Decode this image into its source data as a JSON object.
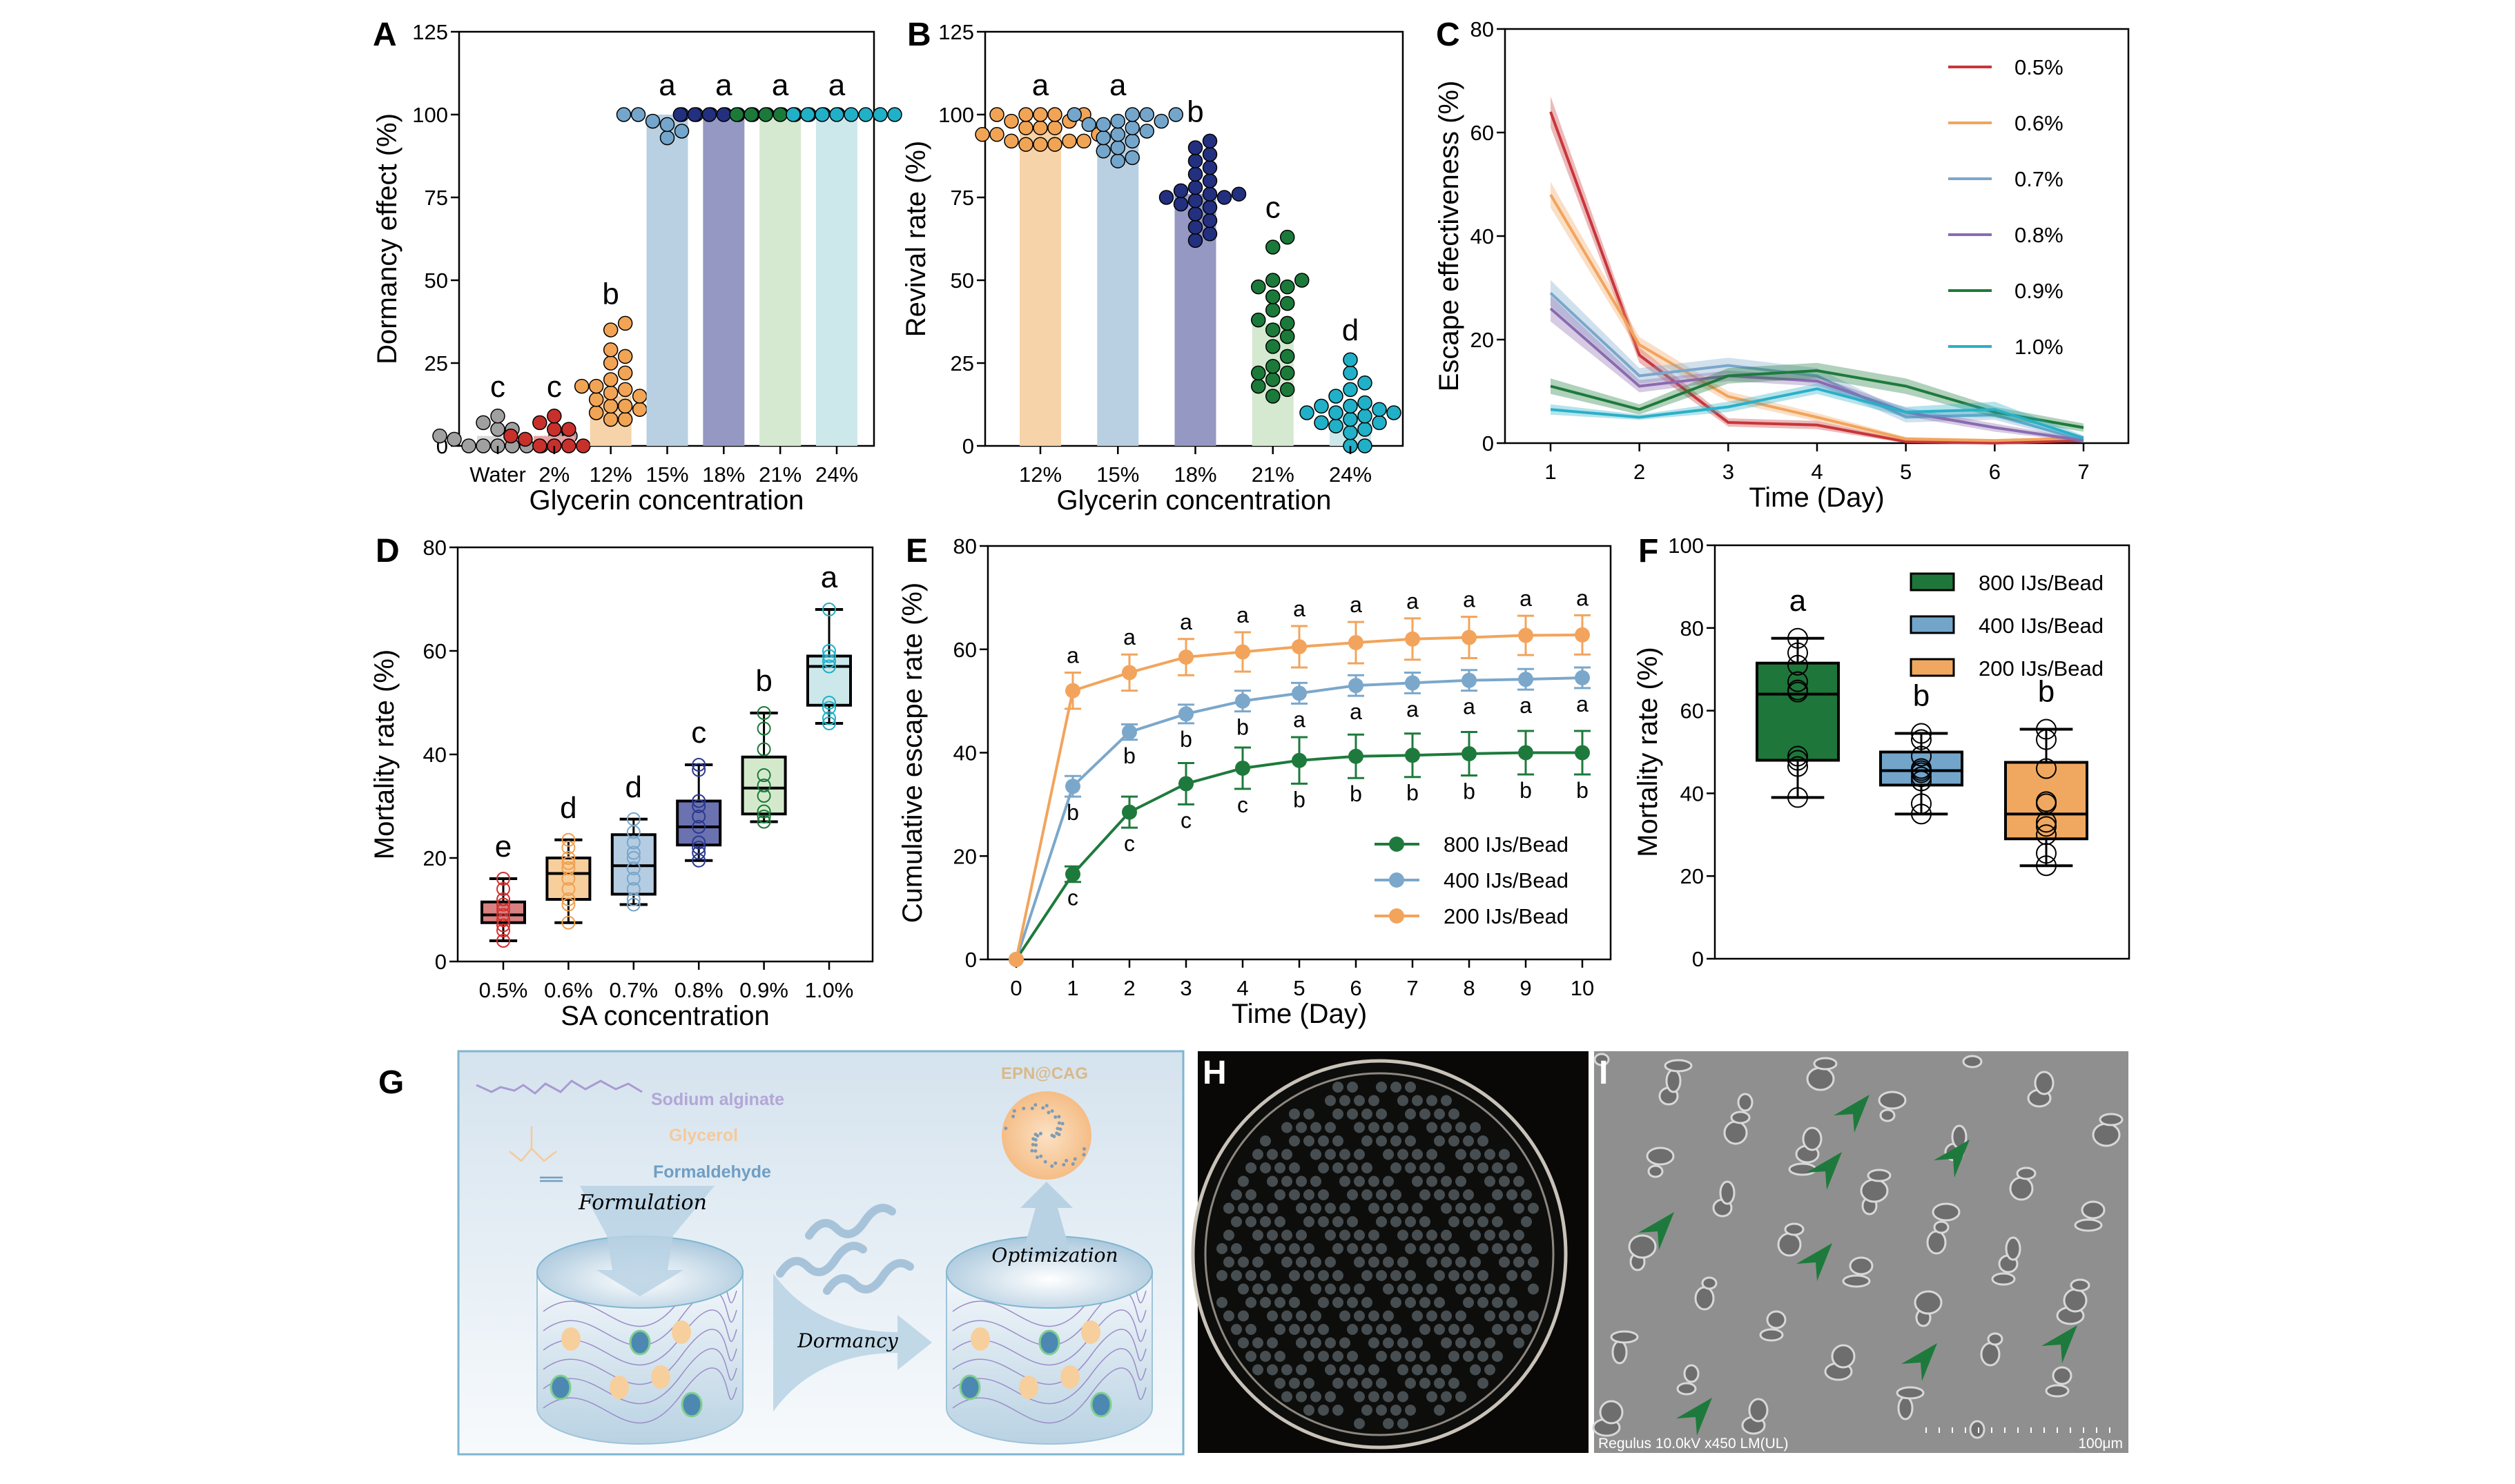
{
  "figure": {
    "panel_labels": [
      "A",
      "B",
      "C",
      "D",
      "E",
      "F",
      "G",
      "H",
      "I"
    ]
  },
  "chart_data": [
    {
      "panel": "A",
      "type": "bar",
      "categories": [
        "Water",
        "2%",
        "12%",
        "15%",
        "18%",
        "21%",
        "24%"
      ],
      "values": [
        3,
        3,
        15,
        100,
        100,
        100,
        100
      ],
      "points": [
        [
          0,
          0,
          0,
          0,
          0,
          0,
          2,
          3,
          3,
          3,
          5,
          5,
          7,
          9
        ],
        [
          0,
          0,
          0,
          0,
          2,
          2,
          3,
          3,
          5,
          5,
          7,
          9
        ],
        [
          8,
          8,
          10,
          11,
          12,
          12,
          14,
          15,
          16,
          17,
          18,
          18,
          20,
          22,
          25,
          27,
          29,
          35,
          37
        ],
        [
          100,
          100,
          100,
          100,
          100,
          100,
          98,
          97,
          95,
          93
        ],
        [
          100,
          100,
          100,
          100,
          100,
          100,
          100,
          100
        ],
        [
          100,
          100,
          100,
          100,
          100,
          100,
          100,
          100
        ],
        [
          100,
          100,
          100,
          100,
          100,
          100,
          100,
          100
        ]
      ],
      "letters": [
        "c",
        "c",
        "b",
        "a",
        "a",
        "a",
        "a"
      ],
      "title": "",
      "xlabel": "Glycerin concentration",
      "ylabel": "Dormancy effect (%)",
      "ylim": [
        0,
        125
      ],
      "yticks": [
        0,
        25,
        50,
        75,
        100,
        125
      ],
      "point_colors": [
        "#a0a0a0",
        "#c8302c",
        "#f2a455",
        "#74a6cc",
        "#23307f",
        "#1b7a3a",
        "#20b0c8"
      ],
      "bar_colors": [
        "#d9d9d9",
        "#e7a3a3",
        "#f6d3a8",
        "#b8d0e2",
        "#9598c2",
        "#d5e8d0",
        "#cde8ea"
      ]
    },
    {
      "panel": "B",
      "type": "bar",
      "categories": [
        "12%",
        "15%",
        "18%",
        "21%",
        "24%"
      ],
      "values": [
        96,
        95,
        76,
        37,
        10
      ],
      "points": [
        [
          100,
          100,
          100,
          100,
          100,
          98,
          98,
          96,
          96,
          96,
          94,
          94,
          94,
          92,
          92,
          92,
          91,
          91,
          91
        ],
        [
          100,
          100,
          100,
          100,
          98,
          98,
          97,
          97,
          96,
          95,
          94,
          93,
          92,
          90,
          89,
          87,
          86
        ],
        [
          92,
          90,
          88,
          86,
          84,
          82,
          80,
          78,
          77,
          76,
          76,
          75,
          75,
          74,
          73,
          72,
          70,
          68,
          66,
          64,
          62
        ],
        [
          63,
          60,
          50,
          50,
          48,
          48,
          45,
          43,
          41,
          38,
          37,
          35,
          33,
          30,
          27,
          24,
          22,
          22,
          20,
          18,
          17,
          15
        ],
        [
          26,
          22,
          19,
          17,
          15,
          13,
          12,
          12,
          11,
          10,
          10,
          10,
          9,
          8,
          7,
          7,
          6,
          5,
          4,
          0,
          0
        ]
      ],
      "letters": [
        "a",
        "a",
        "b",
        "c",
        "d"
      ],
      "title": "",
      "xlabel": "Glycerin concentration",
      "ylabel": "Revival rate (%)",
      "ylim": [
        0,
        125
      ],
      "yticks": [
        0,
        25,
        50,
        75,
        100,
        125
      ],
      "point_colors": [
        "#f2a455",
        "#74a6cc",
        "#23307f",
        "#1b7a3a",
        "#20b0c8"
      ],
      "bar_colors": [
        "#f6d3a8",
        "#b8d0e2",
        "#9598c2",
        "#d5e8d0",
        "#cde8ea"
      ]
    },
    {
      "panel": "C",
      "type": "line",
      "x": [
        1,
        2,
        3,
        4,
        5,
        6,
        7
      ],
      "series": [
        {
          "name": "0.5%",
          "color": "#c8363a",
          "values": [
            64,
            17,
            4,
            3.5,
            0.3,
            0,
            0.5
          ],
          "sd": [
            3,
            1.5,
            0.8,
            0.8,
            0.3,
            0.3,
            0.3
          ]
        },
        {
          "name": "0.6%",
          "color": "#f2a45c",
          "values": [
            48,
            19,
            9,
            5,
            0.8,
            0.5,
            1
          ],
          "sd": [
            2.5,
            1.5,
            1,
            0.8,
            0.4,
            0.3,
            0.3
          ]
        },
        {
          "name": "0.7%",
          "color": "#7ba7cb",
          "values": [
            29,
            13,
            15,
            13,
            5,
            5.5,
            0.5
          ],
          "sd": [
            2.5,
            1.5,
            1.5,
            1.5,
            1,
            1,
            0.5
          ]
        },
        {
          "name": "0.8%",
          "color": "#8a6bb0",
          "values": [
            26,
            11,
            13,
            12,
            6,
            3,
            0.5
          ],
          "sd": [
            2.5,
            1.2,
            1,
            1,
            0.8,
            0.8,
            0.3
          ]
        },
        {
          "name": "0.9%",
          "color": "#1e7a3c",
          "values": [
            11,
            6.5,
            13,
            14,
            11,
            6,
            3
          ],
          "sd": [
            1.5,
            1,
            1.5,
            1.5,
            1.5,
            1,
            0.8
          ]
        },
        {
          "name": "1.0%",
          "color": "#2ab0c8",
          "values": [
            6.5,
            5,
            7,
            10.5,
            6,
            6.5,
            1
          ],
          "sd": [
            1,
            0.5,
            1,
            1,
            1,
            1.5,
            0.5
          ]
        }
      ],
      "title": "",
      "xlabel": "Time (Day)",
      "ylabel": "Escape effectiveness (%)",
      "xlim": [
        1,
        7
      ],
      "ylim": [
        0,
        80
      ],
      "yticks": [
        0,
        20,
        40,
        60,
        80
      ],
      "xticks": [
        1,
        2,
        3,
        4,
        5,
        6,
        7
      ],
      "legend": "top-right"
    },
    {
      "panel": "D",
      "type": "box",
      "categories": [
        "0.5%",
        "0.6%",
        "0.7%",
        "0.8%",
        "0.9%",
        "1.0%"
      ],
      "boxes": [
        {
          "min": 4,
          "q1": 7.5,
          "median": 9,
          "q3": 11.5,
          "max": 16,
          "points": [
            4,
            6,
            7,
            8,
            9,
            10,
            11,
            12,
            14,
            16
          ]
        },
        {
          "min": 7.5,
          "q1": 12,
          "median": 17,
          "q3": 20,
          "max": 23.5,
          "points": [
            7.5,
            11,
            12,
            14,
            16,
            18,
            19,
            20,
            22,
            23.5
          ]
        },
        {
          "min": 11,
          "q1": 13,
          "median": 18.5,
          "q3": 24.5,
          "max": 27.5,
          "points": [
            11,
            12,
            14,
            16,
            18,
            20,
            21,
            23,
            25,
            27.5
          ]
        },
        {
          "min": 19.5,
          "q1": 22.5,
          "median": 26,
          "q3": 31,
          "max": 38,
          "points": [
            19.5,
            21,
            22,
            23,
            26,
            28,
            30,
            31,
            37,
            38
          ]
        },
        {
          "min": 27,
          "q1": 28.5,
          "median": 33.5,
          "q3": 39.5,
          "max": 48,
          "points": [
            27,
            28,
            29,
            32,
            34,
            36,
            41,
            45,
            48
          ]
        },
        {
          "min": 46,
          "q1": 49.5,
          "median": 57,
          "q3": 59,
          "max": 68,
          "points": [
            46,
            47,
            49,
            50,
            57,
            58,
            59,
            60,
            68
          ]
        }
      ],
      "letters": [
        "e",
        "d",
        "d",
        "c",
        "b",
        "a"
      ],
      "title": "",
      "xlabel": "SA concentration",
      "ylabel": "Mortality rate (%)",
      "ylim": [
        0,
        80
      ],
      "yticks": [
        0,
        20,
        40,
        60,
        80
      ],
      "fill_colors": [
        "#d98080",
        "#f7cf9d",
        "#b4cde3",
        "#6b72b0",
        "#d4e9cc",
        "#cde8ea"
      ],
      "point_colors": [
        "#d03030",
        "#f0a050",
        "#7aa6c8",
        "#2b3a8c",
        "#1b7a3a",
        "#20b0c8"
      ]
    },
    {
      "panel": "E",
      "type": "line",
      "x": [
        0,
        1,
        2,
        3,
        4,
        5,
        6,
        7,
        8,
        9,
        10
      ],
      "series": [
        {
          "name": "800 IJs/Bead",
          "color": "#1e7a3c",
          "values": [
            0,
            16.5,
            28.5,
            34,
            37,
            38.5,
            39.3,
            39.5,
            39.8,
            40,
            40
          ],
          "error": [
            0,
            1.5,
            3,
            4,
            4,
            4.5,
            4.2,
            4.2,
            4.2,
            4.2,
            4.2
          ],
          "letters": [
            "",
            "c",
            "c",
            "c",
            "c",
            "b",
            "b",
            "b",
            "b",
            "b",
            "b"
          ]
        },
        {
          "name": "400 IJs/Bead",
          "color": "#7ba7cb",
          "values": [
            0,
            33.5,
            44,
            47.5,
            50,
            51.5,
            53,
            53.5,
            54,
            54.2,
            54.5
          ],
          "error": [
            0,
            2,
            1.5,
            1.8,
            2,
            2,
            2,
            2,
            2,
            2,
            2
          ],
          "letters": [
            "",
            "b",
            "b",
            "b",
            "b",
            "a",
            "a",
            "a",
            "a",
            "a",
            "a"
          ]
        },
        {
          "name": "200 IJs/Bead",
          "color": "#f2a45c",
          "values": [
            0,
            52,
            55.5,
            58.5,
            59.5,
            60.5,
            61.3,
            62,
            62.3,
            62.7,
            62.8
          ],
          "error": [
            0,
            3.5,
            3.5,
            3.5,
            3.8,
            4,
            4,
            4,
            4,
            3.8,
            3.8
          ],
          "letters": [
            "",
            "a",
            "a",
            "a",
            "a",
            "a",
            "a",
            "a",
            "a",
            "a",
            "a"
          ]
        }
      ],
      "title": "",
      "xlabel": "Time (Day)",
      "ylabel": "Cumulative escape rate (%)",
      "xlim": [
        0,
        10
      ],
      "ylim": [
        0,
        80
      ],
      "yticks": [
        0,
        20,
        40,
        60,
        80
      ],
      "xticks": [
        0,
        1,
        2,
        3,
        4,
        5,
        6,
        7,
        8,
        9,
        10
      ],
      "legend": "bottom-right"
    },
    {
      "panel": "F",
      "type": "box",
      "categories": [
        "800 IJs/Bead",
        "400 IJs/Bead",
        "200 IJs/Bead"
      ],
      "boxes": [
        {
          "min": 39,
          "q1": 48,
          "median": 64,
          "q3": 71.5,
          "max": 77.5,
          "points": [
            39,
            46.5,
            48,
            49,
            64.5,
            65,
            67,
            71,
            74,
            77.5
          ]
        },
        {
          "min": 35,
          "q1": 42,
          "median": 45.5,
          "q3": 50,
          "max": 54.5,
          "points": [
            35,
            37.5,
            43,
            44,
            45,
            45.5,
            46,
            49,
            53,
            54.5
          ]
        },
        {
          "min": 22.5,
          "q1": 29,
          "median": 35,
          "q3": 47.5,
          "max": 55.5,
          "points": [
            22.5,
            25.5,
            30,
            32,
            33,
            37.5,
            38,
            46,
            53,
            55.5
          ]
        }
      ],
      "letters": [
        "a",
        "b",
        "b"
      ],
      "title": "",
      "xlabel": "",
      "ylabel": "Mortality rate (%)",
      "ylim": [
        0,
        100
      ],
      "yticks": [
        0,
        20,
        40,
        60,
        80,
        100
      ],
      "fill_colors": [
        "#1e763a",
        "#73a5cb",
        "#f0a860"
      ],
      "legend": "top-right"
    }
  ],
  "schematic": {
    "sodium_alginate": "Sodium alginate",
    "glycerol": "Glycerol",
    "formaldehyde": "Formaldehyde",
    "formulation": "Formulation",
    "dormancy": "Dormancy",
    "optimization": "Optimization",
    "product": "EPN@CAG"
  },
  "sem": {
    "caption": "Regulus 10.0kV x450 LM(UL)",
    "scale": "100μm"
  }
}
